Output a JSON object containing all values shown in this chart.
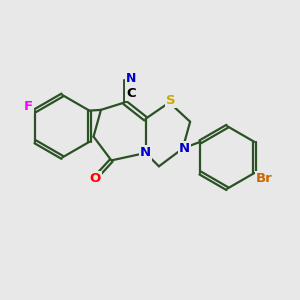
{
  "bg_color": "#e8e8e8",
  "bond_color": "#2a5225",
  "bond_width": 1.6,
  "atom_colors": {
    "C": "#000000",
    "N": "#0000cc",
    "S": "#ccaa00",
    "O": "#ff0000",
    "F": "#ff00ff",
    "Br": "#cc6600"
  },
  "font_size": 9.5,
  "xlim": [
    0,
    10
  ],
  "ylim": [
    1,
    10
  ]
}
